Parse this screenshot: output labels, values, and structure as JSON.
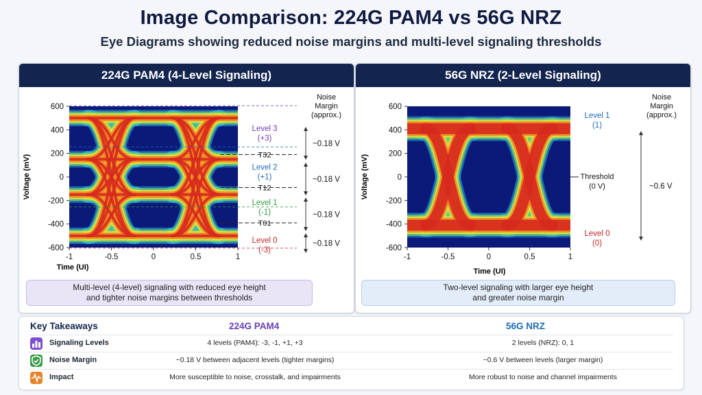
{
  "header": {
    "title": "Image Comparison: 224G PAM4 vs 56G NRZ",
    "subtitle": "Eye Diagrams showing reduced noise margins and multi-level signaling thresholds"
  },
  "pam4": {
    "panel_title": "224G PAM4 (4-Level Signaling)",
    "y_ticks": [
      "600",
      "400",
      "200",
      "0",
      "-200",
      "-400",
      "-600"
    ],
    "x_ticks": [
      "-1",
      "-0.5",
      "0",
      "0.5",
      "1"
    ],
    "ylabel": "Voltage (mV)",
    "xlabel": "Time (UI)",
    "noise_header": [
      "Noise",
      "Margin",
      "(approx.)"
    ],
    "levels": [
      {
        "name": "Level 3",
        "value": "(+3)",
        "color": "#6a3fb5"
      },
      {
        "name": "Level 2",
        "value": "(+1)",
        "color": "#1f6bb8"
      },
      {
        "name": "Level 1",
        "value": "(-1)",
        "color": "#2f9a3a"
      },
      {
        "name": "Level 0",
        "value": "(-3)",
        "color": "#c62828"
      }
    ],
    "thresholds": [
      "T32",
      "T12",
      "T01"
    ],
    "margins": [
      "~0.18 V",
      "~0.18 V",
      "~0.18 V",
      "~0.18 V"
    ],
    "caption": [
      "Multi-level (4-level) signaling with reduced eye height",
      "and tighter noise margins between thresholds"
    ]
  },
  "nrz": {
    "panel_title": "56G NRZ (2-Level Signaling)",
    "y_ticks": [
      "600",
      "400",
      "200",
      "0",
      "-200",
      "-400",
      "-600"
    ],
    "x_ticks": [
      "-1",
      "-0.5",
      "0",
      "0.5",
      "1"
    ],
    "ylabel": "Voltage (mV)",
    "xlabel": "Time (UI)",
    "noise_header": [
      "Noise",
      "Margin",
      "(approx.)"
    ],
    "levels": [
      {
        "name": "Level 1",
        "value": "(1)",
        "color": "#1f6bb8"
      },
      {
        "name": "Level 0",
        "value": "(0)",
        "color": "#c62828"
      }
    ],
    "threshold": [
      "Threshold",
      "(0 V)"
    ],
    "margin": "~0.6 V",
    "caption": [
      "Two-level signaling with larger eye height",
      "and greater noise margin"
    ]
  },
  "takeaways": {
    "title": "Key Takeaways",
    "col_pam4": "224G PAM4",
    "col_nrz": "56G NRZ",
    "col_pam4_color": "#6a3fb5",
    "col_nrz_color": "#1f6bb8",
    "rows": [
      {
        "icon": "bar-chart-icon",
        "icon_color": "#7b4fcf",
        "label": "Signaling Levels",
        "pam4": "4 levels (PAM4): -3, -1, +1, +3",
        "nrz": "2 levels (NRZ): 0, 1"
      },
      {
        "icon": "shield-check-icon",
        "icon_color": "#3a9a48",
        "label": "Noise Margin",
        "pam4": "~0.18 V between adjacent levels (tighter margins)",
        "nrz": "~0.6 V between levels (larger margin)"
      },
      {
        "icon": "waveform-icon",
        "icon_color": "#e8852c",
        "label": "Impact",
        "pam4": "More susceptible to noise, crosstalk, and impairments",
        "nrz": "More robust to noise and channel impairments"
      }
    ]
  }
}
